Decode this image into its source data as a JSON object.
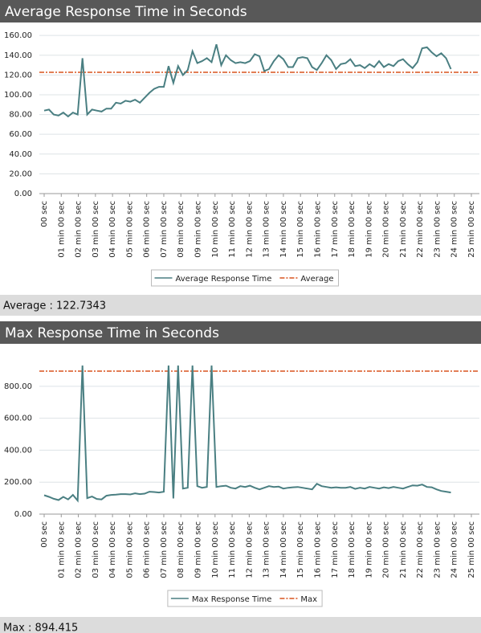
{
  "chart_data": [
    {
      "type": "line",
      "title": "Average Response Time in Seconds",
      "x": [
        0,
        0.28,
        0.56,
        0.84,
        1.12,
        1.4,
        1.68,
        1.96,
        2.24,
        2.52,
        2.8,
        3.08,
        3.36,
        3.64,
        3.92,
        4.2,
        4.48,
        4.76,
        5.04,
        5.32,
        5.6,
        5.88,
        6.16,
        6.44,
        6.72,
        7,
        7.28,
        7.56,
        7.84,
        8.12,
        8.4,
        8.68,
        8.96,
        9.24,
        9.52,
        9.8,
        10.08,
        10.36,
        10.64,
        10.92,
        11.2,
        11.48,
        11.76,
        12.04,
        12.32,
        12.6,
        12.88,
        13.16,
        13.44,
        13.72,
        14,
        14.28,
        14.56,
        14.84,
        15.12,
        15.4,
        15.68,
        15.96,
        16.24,
        16.52,
        16.8,
        17.08,
        17.36,
        17.64,
        17.92,
        18.2,
        18.48,
        18.76,
        19.04,
        19.32,
        19.6,
        19.88,
        20.16,
        20.44,
        20.72,
        21,
        21.28,
        21.56,
        21.84,
        22.12,
        22.4,
        22.68,
        22.96,
        23.24,
        23.52,
        23.8
      ],
      "series": [
        {
          "name": "Average Response Time",
          "color": "#4a7f82",
          "values": [
            84,
            85,
            80,
            79,
            82,
            78,
            82,
            80,
            137,
            80,
            85,
            84,
            83,
            86,
            86,
            92,
            91,
            94,
            93,
            95,
            92,
            97,
            102,
            106,
            108,
            108,
            129,
            112,
            129,
            120,
            125,
            144,
            132,
            134,
            137,
            133,
            151,
            130,
            140,
            135,
            132,
            133,
            132,
            134,
            141,
            139,
            124,
            126,
            134,
            140,
            136,
            128,
            128,
            137,
            138,
            137,
            128,
            125,
            132,
            140,
            135,
            126,
            131,
            132,
            136,
            129,
            130,
            127,
            131,
            128,
            134,
            128,
            131,
            129,
            134,
            136,
            131,
            127,
            133,
            147,
            148,
            143,
            139,
            142,
            137,
            126
          ]
        }
      ],
      "reference_line": {
        "name": "Average",
        "value": 122.7343,
        "color": "#d9541e"
      },
      "summary": "Average : 122.7343",
      "xlim": [
        0,
        25
      ],
      "xticks": [
        {
          "value": 0,
          "label": "00 sec"
        },
        {
          "value": 1,
          "label": "01 min 00 sec"
        },
        {
          "value": 2,
          "label": "02 min 00 sec"
        },
        {
          "value": 3,
          "label": "03 min 00 sec"
        },
        {
          "value": 4,
          "label": "04 min 00 sec"
        },
        {
          "value": 5,
          "label": "05 min 00 sec"
        },
        {
          "value": 6,
          "label": "06 min 00 sec"
        },
        {
          "value": 7,
          "label": "07 min 00 sec"
        },
        {
          "value": 8,
          "label": "08 min 00 sec"
        },
        {
          "value": 9,
          "label": "09 min 00 sec"
        },
        {
          "value": 10,
          "label": "10 min 00 sec"
        },
        {
          "value": 11,
          "label": "11 min 00 sec"
        },
        {
          "value": 12,
          "label": "12 min 00 sec"
        },
        {
          "value": 13,
          "label": "13 min 00 sec"
        },
        {
          "value": 14,
          "label": "14 min 00 sec"
        },
        {
          "value": 15,
          "label": "15 min 00 sec"
        },
        {
          "value": 16,
          "label": "16 min 00 sec"
        },
        {
          "value": 17,
          "label": "17 min 00 sec"
        },
        {
          "value": 18,
          "label": "18 min 00 sec"
        },
        {
          "value": 19,
          "label": "19 min 00 sec"
        },
        {
          "value": 20,
          "label": "20 min 00 sec"
        },
        {
          "value": 21,
          "label": "21 min 00 sec"
        },
        {
          "value": 22,
          "label": "22 min 00 sec"
        },
        {
          "value": 23,
          "label": "23 min 00 sec"
        },
        {
          "value": 24,
          "label": "24 min 00 sec"
        },
        {
          "value": 25,
          "label": "25 min 00 sec"
        }
      ],
      "ylim": [
        0,
        165
      ],
      "yticks": [
        {
          "value": 0,
          "label": "0.00"
        },
        {
          "value": 20,
          "label": "20.00"
        },
        {
          "value": 40,
          "label": "40.00"
        },
        {
          "value": 60,
          "label": "60.00"
        },
        {
          "value": 80,
          "label": "80.00"
        },
        {
          "value": 100,
          "label": "100.00"
        },
        {
          "value": 120,
          "label": "120.00"
        },
        {
          "value": 140,
          "label": "140.00"
        },
        {
          "value": 160,
          "label": "160.00"
        }
      ],
      "grid": true
    },
    {
      "type": "line",
      "title": "Max Response Time in Seconds",
      "x": [
        0,
        0.28,
        0.56,
        0.84,
        1.12,
        1.4,
        1.68,
        1.96,
        2.24,
        2.52,
        2.8,
        3.08,
        3.36,
        3.64,
        3.92,
        4.2,
        4.48,
        4.76,
        5.04,
        5.32,
        5.6,
        5.88,
        6.16,
        6.44,
        6.72,
        7,
        7.28,
        7.56,
        7.84,
        8.12,
        8.4,
        8.68,
        8.96,
        9.24,
        9.52,
        9.8,
        10.08,
        10.36,
        10.64,
        10.92,
        11.2,
        11.48,
        11.76,
        12.04,
        12.32,
        12.6,
        12.88,
        13.16,
        13.44,
        13.72,
        14,
        14.28,
        14.56,
        14.84,
        15.12,
        15.4,
        15.68,
        15.96,
        16.24,
        16.52,
        16.8,
        17.08,
        17.36,
        17.64,
        17.92,
        18.2,
        18.48,
        18.76,
        19.04,
        19.32,
        19.6,
        19.88,
        20.16,
        20.44,
        20.72,
        21,
        21.28,
        21.56,
        21.84,
        22.12,
        22.4,
        22.68,
        22.96,
        23.24,
        23.52,
        23.8
      ],
      "series": [
        {
          "name": "Max Response Time",
          "color": "#4a7f82",
          "values": [
            118,
            108,
            96,
            88,
            108,
            92,
            120,
            85,
            930,
            100,
            110,
            95,
            92,
            115,
            120,
            122,
            125,
            125,
            123,
            130,
            125,
            128,
            140,
            138,
            135,
            140,
            930,
            98,
            930,
            160,
            165,
            930,
            175,
            165,
            170,
            930,
            170,
            175,
            178,
            165,
            160,
            175,
            170,
            178,
            165,
            155,
            165,
            175,
            170,
            172,
            160,
            165,
            168,
            170,
            165,
            160,
            155,
            190,
            175,
            170,
            165,
            168,
            165,
            165,
            170,
            158,
            165,
            160,
            170,
            165,
            160,
            168,
            163,
            170,
            165,
            160,
            170,
            180,
            178,
            185,
            170,
            168,
            155,
            145,
            140,
            135
          ]
        }
      ],
      "reference_line": {
        "name": "Max",
        "value": 894.415,
        "color": "#d9541e"
      },
      "summary": "Max : 894.415",
      "xlim": [
        0,
        25
      ],
      "xticks": [
        {
          "value": 0,
          "label": "00 sec"
        },
        {
          "value": 1,
          "label": "01 min 00 sec"
        },
        {
          "value": 2,
          "label": "02 min 00 sec"
        },
        {
          "value": 3,
          "label": "03 min 00 sec"
        },
        {
          "value": 4,
          "label": "04 min 00 sec"
        },
        {
          "value": 5,
          "label": "05 min 00 sec"
        },
        {
          "value": 6,
          "label": "06 min 00 sec"
        },
        {
          "value": 7,
          "label": "07 min 00 sec"
        },
        {
          "value": 8,
          "label": "08 min 00 sec"
        },
        {
          "value": 9,
          "label": "09 min 00 sec"
        },
        {
          "value": 10,
          "label": "10 min 00 sec"
        },
        {
          "value": 11,
          "label": "11 min 00 sec"
        },
        {
          "value": 12,
          "label": "12 min 00 sec"
        },
        {
          "value": 13,
          "label": "13 min 00 sec"
        },
        {
          "value": 14,
          "label": "14 min 00 sec"
        },
        {
          "value": 15,
          "label": "15 min 00 sec"
        },
        {
          "value": 16,
          "label": "16 min 00 sec"
        },
        {
          "value": 17,
          "label": "17 min 00 sec"
        },
        {
          "value": 18,
          "label": "18 min 00 sec"
        },
        {
          "value": 19,
          "label": "19 min 00 sec"
        },
        {
          "value": 20,
          "label": "20 min 00 sec"
        },
        {
          "value": 21,
          "label": "21 min 00 sec"
        },
        {
          "value": 22,
          "label": "22 min 00 sec"
        },
        {
          "value": 23,
          "label": "23 min 00 sec"
        },
        {
          "value": 24,
          "label": "24 min 00 sec"
        },
        {
          "value": 25,
          "label": "25 min 00 sec"
        }
      ],
      "ylim": [
        0,
        950
      ],
      "yticks": [
        {
          "value": 0,
          "label": "0.00"
        },
        {
          "value": 200,
          "label": "200.00"
        },
        {
          "value": 400,
          "label": "400.00"
        },
        {
          "value": 600,
          "label": "600.00"
        },
        {
          "value": 800,
          "label": "800.00"
        }
      ],
      "grid": true
    }
  ]
}
